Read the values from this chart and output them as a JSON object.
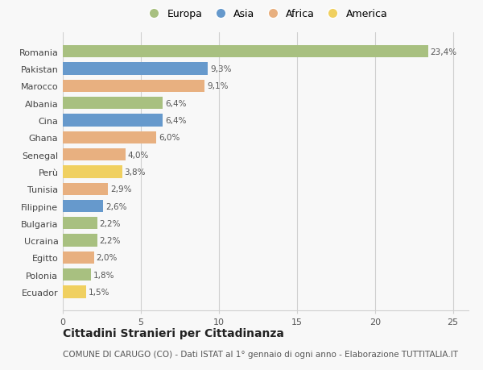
{
  "categories": [
    "Romania",
    "Pakistan",
    "Marocco",
    "Albania",
    "Cina",
    "Ghana",
    "Senegal",
    "Perù",
    "Tunisia",
    "Filippine",
    "Bulgaria",
    "Ucraina",
    "Egitto",
    "Polonia",
    "Ecuador"
  ],
  "values": [
    23.4,
    9.3,
    9.1,
    6.4,
    6.4,
    6.0,
    4.0,
    3.8,
    2.9,
    2.6,
    2.2,
    2.2,
    2.0,
    1.8,
    1.5
  ],
  "labels": [
    "23,4%",
    "9,3%",
    "9,1%",
    "6,4%",
    "6,4%",
    "6,0%",
    "4,0%",
    "3,8%",
    "2,9%",
    "2,6%",
    "2,2%",
    "2,2%",
    "2,0%",
    "1,8%",
    "1,5%"
  ],
  "continents": [
    "Europa",
    "Asia",
    "Africa",
    "Europa",
    "Asia",
    "Africa",
    "Africa",
    "America",
    "Africa",
    "Asia",
    "Europa",
    "Europa",
    "Africa",
    "Europa",
    "America"
  ],
  "continent_colors": {
    "Europa": "#a8c080",
    "Asia": "#6699cc",
    "Africa": "#e8b080",
    "America": "#f0d060"
  },
  "legend_order": [
    "Europa",
    "Asia",
    "Africa",
    "America"
  ],
  "title": "Cittadini Stranieri per Cittadinanza",
  "subtitle": "COMUNE DI CARUGO (CO) - Dati ISTAT al 1° gennaio di ogni anno - Elaborazione TUTTITALIA.IT",
  "xlim": [
    0,
    26
  ],
  "xticks": [
    0,
    5,
    10,
    15,
    20,
    25
  ],
  "background_color": "#f8f8f8",
  "grid_color": "#d0d0d0",
  "bar_height": 0.72,
  "title_fontsize": 10,
  "subtitle_fontsize": 7.5,
  "label_fontsize": 7.5,
  "tick_fontsize": 8,
  "legend_fontsize": 9
}
